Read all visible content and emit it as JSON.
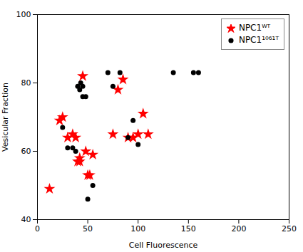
{
  "chart_data": {
    "type": "scatter",
    "xlabel": "Cell Fluorescence",
    "ylabel": "Vesicular Fraction",
    "xlim": [
      0,
      250
    ],
    "ylim": [
      40,
      100
    ],
    "xticks": [
      0,
      50,
      100,
      150,
      200,
      250
    ],
    "yticks": [
      40,
      60,
      80,
      100
    ],
    "grid": false,
    "legend": "upper right",
    "series": [
      {
        "name": "NPC1ᵂᵀ",
        "color": "#FF0000",
        "marker": "star",
        "x": [
          12,
          22,
          25,
          30,
          35,
          38,
          40,
          42,
          42,
          45,
          48,
          50,
          52,
          55,
          75,
          80,
          85,
          90,
          95,
          100,
          105,
          110
        ],
        "values": [
          49,
          69,
          70,
          64,
          65,
          64,
          57,
          57,
          58,
          82,
          60,
          53,
          53,
          59,
          65,
          78,
          81,
          64,
          64,
          65,
          71,
          65
        ]
      },
      {
        "name": "NPC1¹⁰⁶¹ᵀ",
        "color": "#000000",
        "marker": "circle",
        "x": [
          25,
          30,
          35,
          38,
          40,
          42,
          43,
          45,
          45,
          48,
          50,
          55,
          70,
          75,
          82,
          90,
          95,
          100,
          135,
          155,
          160
        ],
        "values": [
          67,
          61,
          61,
          60,
          79,
          78,
          80,
          79,
          76,
          76,
          46,
          50,
          83,
          79,
          83,
          64,
          69,
          62,
          83,
          83,
          83
        ]
      }
    ]
  }
}
